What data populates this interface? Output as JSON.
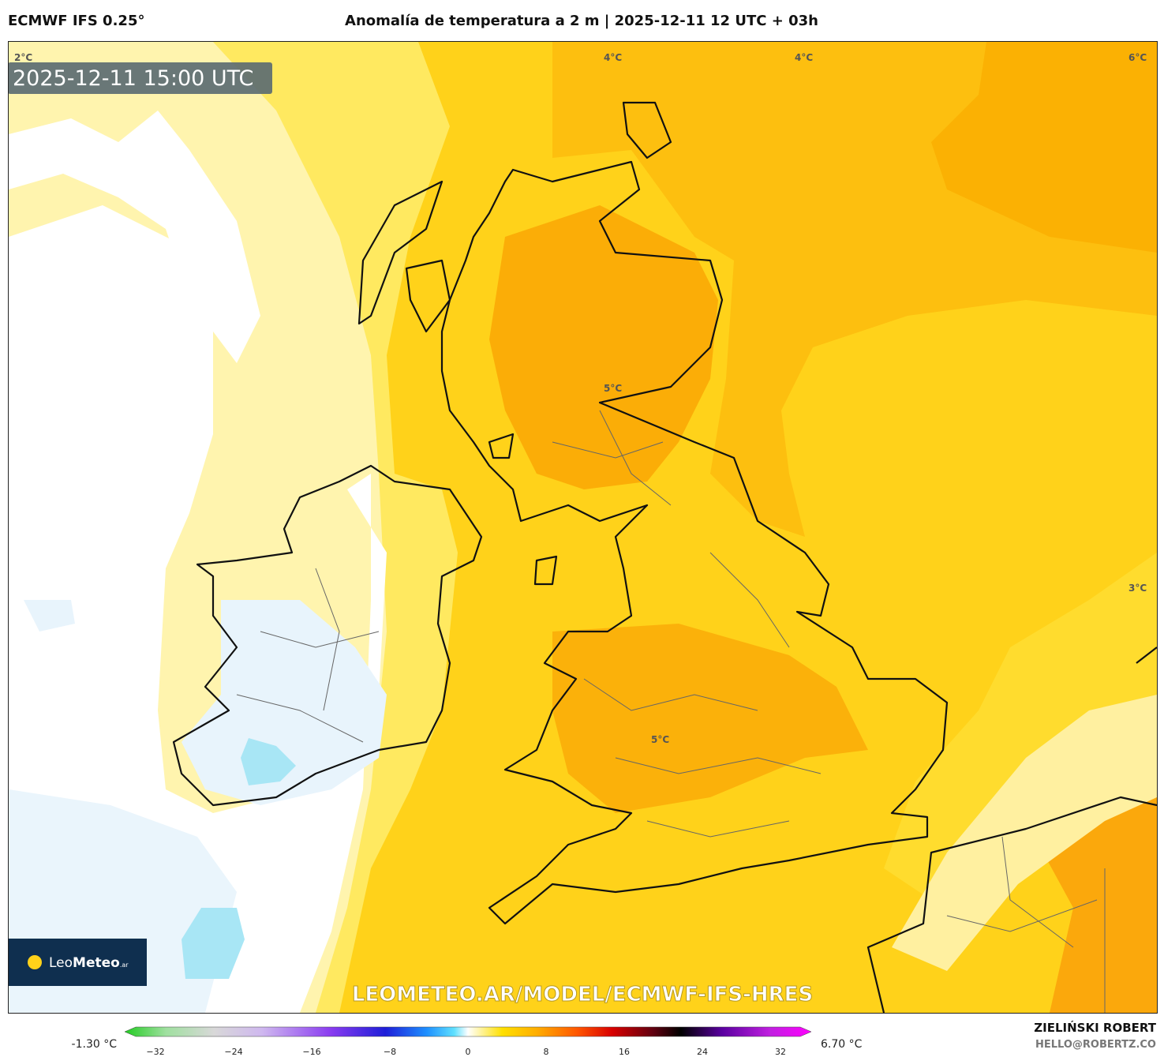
{
  "header": {
    "model": "ECMWF IFS 0.25°",
    "title": "Anomalía de temperatura a 2 m | 2025-12-11 12 UTC + 03h"
  },
  "map": {
    "timestamp": "2025-12-11 15:00 UTC",
    "contour_labels": [
      "2°C",
      "4°C",
      "4°C",
      "6°C",
      "5°C",
      "5°C",
      "3°C"
    ],
    "watermark": "LEOMETEO.AR/MODEL/ECMWF-IFS-HRES",
    "logo": {
      "brand_light": "Leo",
      "brand_bold": "Meteo",
      "suffix": ".ar"
    }
  },
  "colorbar": {
    "min_label": "-1.30 °C",
    "max_label": "6.70 °C",
    "ticks": [
      "−32",
      "−24",
      "−16",
      "−8",
      "0",
      "8",
      "16",
      "24",
      "32"
    ]
  },
  "credit": {
    "author": "ZIELIŃSKI ROBERT",
    "contact": "HELLO@ROBERTZ.CO"
  }
}
